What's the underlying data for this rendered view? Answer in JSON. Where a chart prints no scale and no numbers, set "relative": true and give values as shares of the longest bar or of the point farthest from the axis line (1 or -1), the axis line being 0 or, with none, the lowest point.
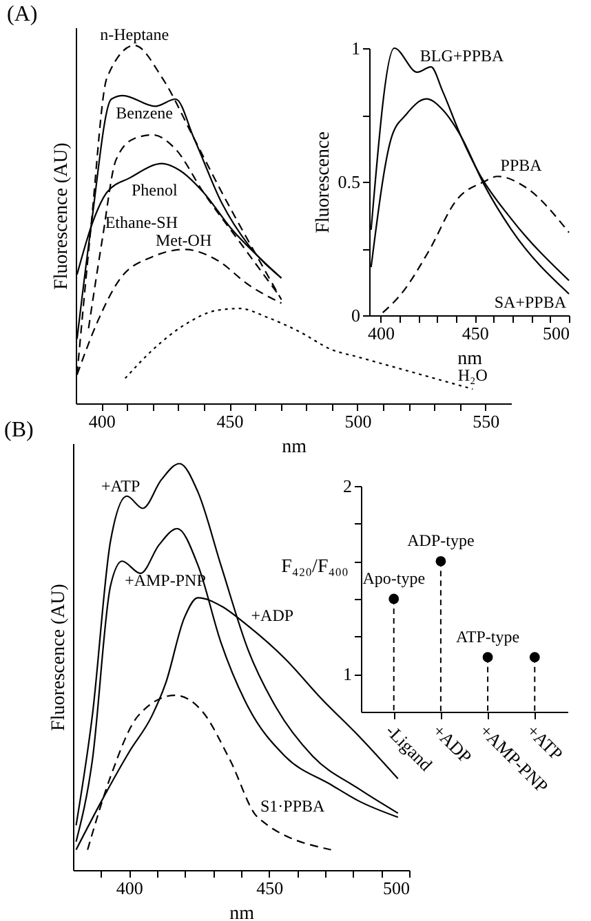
{
  "chart_data": [
    {
      "type": "line",
      "relative": true,
      "xlabel": "nm",
      "ylabel": "Fluorescence (AU)",
      "annotations": [
        "(A)"
      ],
      "xlim": [
        390,
        560
      ],
      "xticks": [
        400,
        {
          "value": 410,
          "label": null
        },
        {
          "value": 420,
          "label": null
        },
        {
          "value": 430,
          "label": null
        },
        {
          "value": 440,
          "label": null
        },
        450,
        {
          "value": 460,
          "label": null
        },
        {
          "value": 470,
          "label": null
        },
        {
          "value": 480,
          "label": null
        },
        {
          "value": 490,
          "label": null
        },
        500,
        {
          "value": 510,
          "label": null
        },
        {
          "value": 520,
          "label": null
        },
        {
          "value": 530,
          "label": null
        },
        {
          "value": 540,
          "label": null
        },
        550
      ],
      "series": [
        {
          "name": "n-Heptane",
          "color": "#000000",
          "line_style": "dashed",
          "x": [
            390.5,
            395.9,
            402.2,
            412.9,
            423.7,
            436.2,
            447,
            457.7,
            470.3
          ],
          "values": [
            0.08,
            0.49,
            0.91,
            1.0,
            0.91,
            0.74,
            0.59,
            0.45,
            0.29
          ]
        },
        {
          "name": "Benzene",
          "color": "#000000",
          "line_style": "solid",
          "x": [
            390.5,
            395.9,
            403.9,
            408.4,
            421,
            429,
            436.2,
            447,
            457.7,
            470.3
          ],
          "values": [
            0.18,
            0.49,
            0.85,
            0.86,
            0.83,
            0.85,
            0.74,
            0.56,
            0.44,
            0.35
          ]
        },
        {
          "name": "Ethane-SH",
          "color": "#000000",
          "line_style": "dashed",
          "x": [
            395,
            400.4,
            405.7,
            412.9,
            420.1,
            429,
            439.8,
            454.1,
            468.5
          ],
          "values": [
            0.21,
            0.46,
            0.68,
            0.74,
            0.75,
            0.71,
            0.59,
            0.45,
            0.31
          ]
        },
        {
          "name": "Phenol",
          "color": "#000000",
          "line_style": "solid",
          "x": [
            390.5,
            396.8,
            402.2,
            411.1,
            423.7,
            430.8,
            439.8,
            450.5,
            461.3,
            470.3
          ],
          "values": [
            0.36,
            0.51,
            0.59,
            0.63,
            0.67,
            0.65,
            0.59,
            0.49,
            0.41,
            0.35
          ]
        },
        {
          "name": "Met-OH",
          "color": "#000000",
          "line_style": "dashed",
          "x": [
            390.5,
            398.6,
            407.5,
            420.1,
            432.6,
            445.2,
            457.7,
            470.3
          ],
          "values": [
            0.08,
            0.23,
            0.35,
            0.41,
            0.43,
            0.4,
            0.33,
            0.28
          ]
        },
        {
          "name": "H₂O",
          "color": "#000000",
          "line_style": "dotted",
          "x": [
            409.3,
            420.1,
            432.6,
            445.2,
            454.1,
            464.9,
            477.4,
            490,
            500,
            520,
            545
          ],
          "values": [
            0.07,
            0.15,
            0.22,
            0.26,
            0.265,
            0.24,
            0.2,
            0.15,
            0.13,
            0.09,
            0.04
          ]
        }
      ]
    },
    {
      "type": "line",
      "xlabel": "nm",
      "ylabel": "Fluorescence",
      "xlim": [
        394,
        500
      ],
      "ylim": [
        0,
        1
      ],
      "xticks": [
        400,
        {
          "value": 410,
          "label": null
        },
        {
          "value": 420,
          "label": null
        },
        {
          "value": 430,
          "label": null
        },
        {
          "value": 440,
          "label": null
        },
        450,
        {
          "value": 460,
          "label": null
        },
        {
          "value": 470,
          "label": null
        },
        {
          "value": 480,
          "label": null
        },
        {
          "value": 490,
          "label": null
        },
        500
      ],
      "yticks": [
        0,
        {
          "value": 0.25,
          "label": null
        },
        0.5,
        {
          "value": 0.75,
          "label": null
        },
        1
      ],
      "series": [
        {
          "name": "BLG+PPBA",
          "color": "#000000",
          "line_style": "solid",
          "x": [
            395,
            407.3,
            419.5,
            426.8,
            432.9,
            442.7,
            452.4,
            469.5,
            500
          ],
          "values": [
            0.32,
            1.0,
            0.91,
            0.93,
            0.84,
            0.67,
            0.53,
            0.36,
            0.13
          ]
        },
        {
          "name": "SA+PPBA",
          "color": "#000000",
          "line_style": "solid",
          "x": [
            395,
            406,
            413.4,
            424.4,
            432.9,
            442.7,
            454.9,
            469.5,
            500
          ],
          "values": [
            0.18,
            0.67,
            0.75,
            0.81,
            0.77,
            0.67,
            0.49,
            0.32,
            0.08
          ]
        },
        {
          "name": "PPBA",
          "color": "#000000",
          "line_style": "dashed",
          "x": [
            401.2,
            411,
            425.6,
            440.2,
            454.9,
            462.2,
            476.8,
            500
          ],
          "values": [
            0.01,
            0.08,
            0.24,
            0.43,
            0.5,
            0.52,
            0.48,
            0.31
          ]
        }
      ]
    },
    {
      "type": "line",
      "relative": true,
      "xlabel": "nm",
      "ylabel": "Fluorescence (AU)",
      "annotations": [
        "(B)"
      ],
      "xlim": [
        380,
        500
      ],
      "xticks": [
        {
          "value": 390,
          "label": null
        },
        400,
        {
          "value": 410,
          "label": null
        },
        {
          "value": 420,
          "label": null
        },
        {
          "value": 430,
          "label": null
        },
        {
          "value": 440,
          "label": null
        },
        450,
        {
          "value": 460,
          "label": null
        },
        {
          "value": 470,
          "label": null
        },
        {
          "value": 480,
          "label": null
        },
        {
          "value": 490,
          "label": null
        },
        500
      ],
      "series": [
        {
          "name": "+ATP",
          "color": "#000000",
          "line_style": "solid",
          "x": [
            381.1,
            386.9,
            393.4,
            399.2,
            404.9,
            411.5,
            418,
            424.6,
            432.8,
            442.6,
            452.5,
            465.6,
            482,
            496
          ],
          "values": [
            0.11,
            0.38,
            0.81,
            0.92,
            0.89,
            0.96,
            1.0,
            0.93,
            0.75,
            0.54,
            0.4,
            0.28,
            0.2,
            0.14
          ]
        },
        {
          "name": "+AMP-PNP",
          "color": "#000000",
          "line_style": "solid",
          "x": [
            381.1,
            386.9,
            393.4,
            397.5,
            404.1,
            410.7,
            417.2,
            424.6,
            432.8,
            442.6,
            455.7,
            472.1,
            482,
            496
          ],
          "values": [
            0.07,
            0.27,
            0.7,
            0.76,
            0.73,
            0.8,
            0.84,
            0.75,
            0.56,
            0.4,
            0.28,
            0.21,
            0.17,
            0.13
          ]
        },
        {
          "name": "+ADP",
          "color": "#000000",
          "line_style": "solid",
          "x": [
            381.1,
            390.2,
            400,
            408.2,
            413.1,
            419.7,
            424.6,
            432.8,
            442.6,
            455.7,
            468.9,
            482,
            496
          ],
          "values": [
            0.05,
            0.17,
            0.29,
            0.38,
            0.46,
            0.62,
            0.67,
            0.65,
            0.6,
            0.52,
            0.42,
            0.33,
            0.225
          ]
        },
        {
          "name": "S1·PPBA",
          "color": "#000000",
          "line_style": "dashed",
          "x": [
            385.2,
            393.4,
            403.3,
            416.4,
            426.2,
            436.1,
            445.9,
            472.1
          ],
          "values": [
            0.05,
            0.23,
            0.38,
            0.43,
            0.39,
            0.27,
            0.13,
            0.05
          ]
        }
      ]
    },
    {
      "type": "lollipop",
      "ylabel": "F₄₂₀/F₄₀₀",
      "categories": [
        "-Ligand",
        "+ADP",
        "+AMP-PNP",
        "+ATP"
      ],
      "values": [
        1.4,
        1.6,
        1.09,
        1.09
      ],
      "color": "#000000",
      "marker": "circle",
      "line_style": "dashed",
      "ylim": [
        0.8,
        2
      ],
      "yticks": [
        1,
        {
          "value": 1.2,
          "label": null
        },
        {
          "value": 1.4,
          "label": null
        },
        {
          "value": 1.6,
          "label": null
        },
        {
          "value": 1.8,
          "label": null
        },
        2
      ],
      "annotations": [
        {
          "text": "Apo-type",
          "x": "-Ligand",
          "y": 1.4
        },
        {
          "text": "ADP-type",
          "x": "+ADP",
          "y": 1.6
        },
        {
          "text": "ATP-type",
          "x": "+AMP-PNP",
          "y": 1.09
        }
      ]
    }
  ]
}
